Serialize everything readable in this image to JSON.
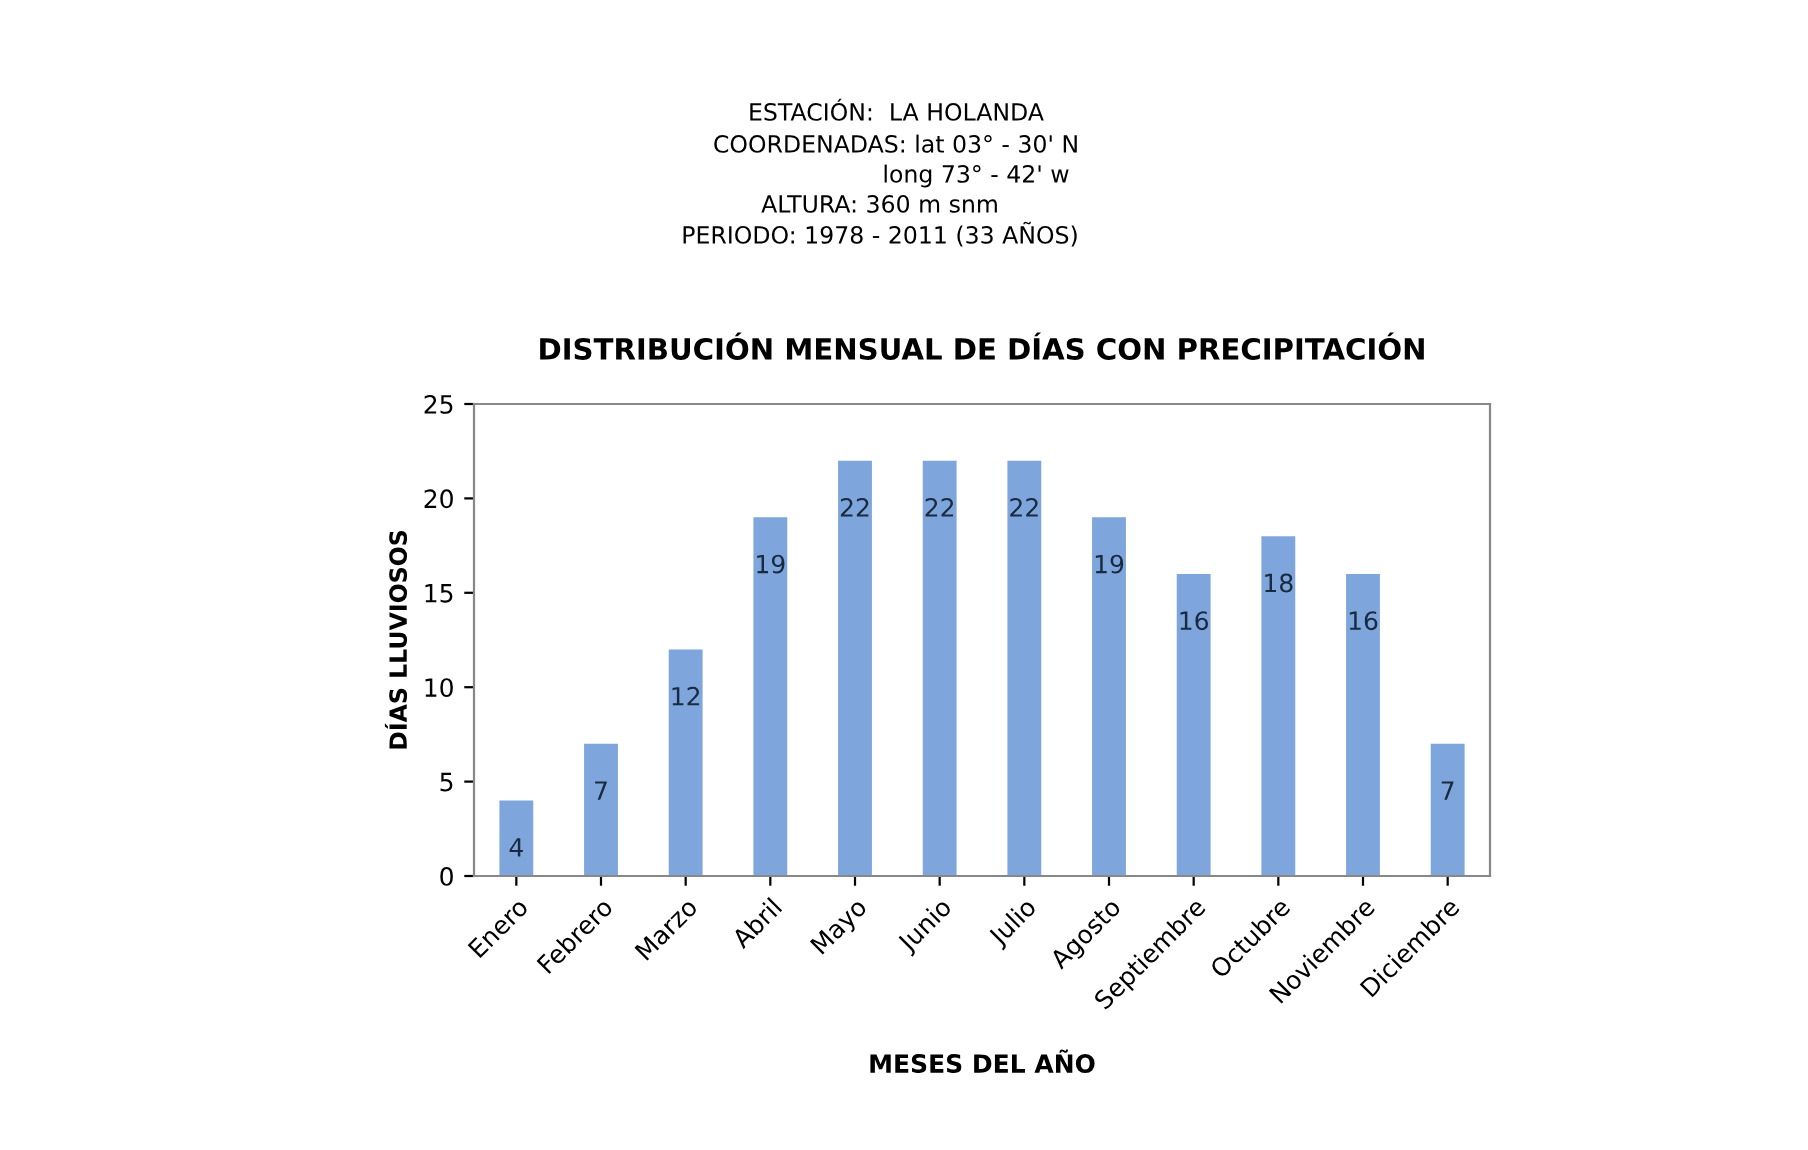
{
  "chart_data": {
    "type": "bar",
    "title": "DISTRIBUCIÓN MENSUAL DE DÍAS CON PRECIPITACIÓN",
    "annotations": [
      "ESTACIÓN:  LA HOLANDA",
      "COORDENADAS: lat 03° - 30' N",
      "long 73° - 42' w",
      "ALTURA: 360 m snm",
      "PERIODO: 1978 - 2011 (33 AÑOS)"
    ],
    "xlabel": "MESES DEL AÑO",
    "ylabel": "DÍAS LLUVIOSOS",
    "categories": [
      "Enero",
      "Febrero",
      "Marzo",
      "Abril",
      "Mayo",
      "Junio",
      "Julio",
      "Agosto",
      "Septiembre",
      "Octubre",
      "Noviembre",
      "Diciembre"
    ],
    "values": [
      4,
      7,
      12,
      19,
      22,
      22,
      22,
      19,
      16,
      18,
      16,
      7
    ],
    "color": "#7ea6dc",
    "ylim": [
      0,
      25
    ],
    "yticks": [
      0,
      5,
      10,
      15,
      20,
      25
    ],
    "data_labels": true,
    "grid": false,
    "legend": false
  }
}
